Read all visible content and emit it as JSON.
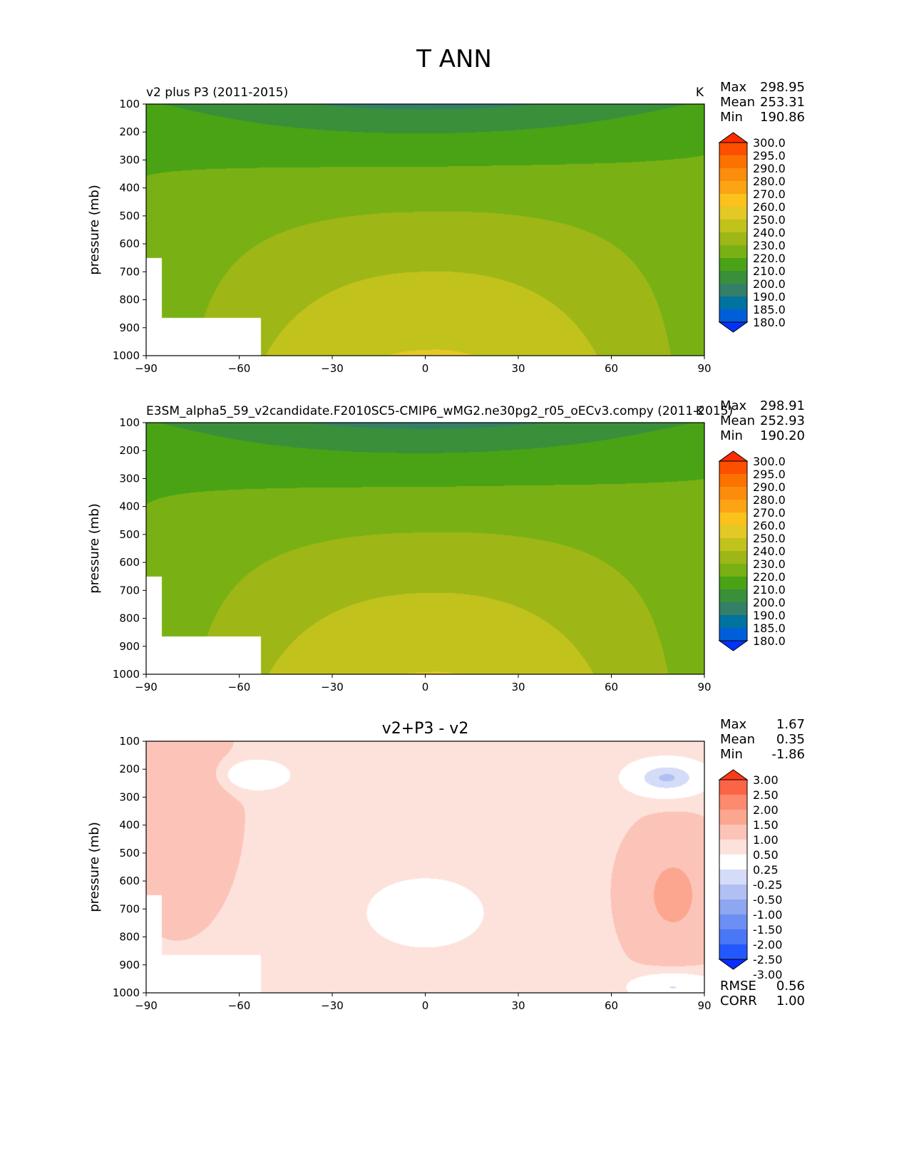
{
  "figure_title": "T ANN",
  "colors": {
    "test_levels": [
      "#0033ff",
      "#005ed9",
      "#00739e",
      "#347f68",
      "#3a8f3a",
      "#4aa314",
      "#79b114",
      "#9eb716",
      "#c2c21c",
      "#e3c826",
      "#fbc11c",
      "#fca414",
      "#fc8c0c",
      "#fc7200",
      "#fc5000",
      "#fc2d00"
    ],
    "diff_levels": [
      "#0a2cff",
      "#2458ff",
      "#4a77f5",
      "#6b8ff2",
      "#8fa6f0",
      "#b1bff2",
      "#d5dcf8",
      "#ffffff",
      "#fde2dc",
      "#fcc4b8",
      "#fca690",
      "#fc8a6e",
      "#fb6446",
      "#fc3a18"
    ]
  },
  "legend_labels": {
    "temperature": [
      "300.0",
      "295.0",
      "290.0",
      "280.0",
      "270.0",
      "260.0",
      "250.0",
      "240.0",
      "230.0",
      "220.0",
      "210.0",
      "200.0",
      "190.0",
      "185.0",
      "180.0"
    ],
    "difference": [
      "3.00",
      "2.50",
      "2.00",
      "1.50",
      "1.00",
      "0.50",
      "0.25",
      "-0.25",
      "-0.50",
      "-1.00",
      "-1.50",
      "-2.00",
      "-2.50",
      "-3.00"
    ]
  },
  "chart_data": [
    {
      "type": "heatmap",
      "left_title": "v2 plus P3 (2011-2015)",
      "units": "K",
      "stats": [
        {
          "label": "Max",
          "value": "298.95"
        },
        {
          "label": "Mean",
          "value": "253.31"
        },
        {
          "label": "Min",
          "value": "190.86"
        }
      ],
      "ylabel": "pressure (mb)",
      "x_ticks": [
        "−90",
        "−60",
        "−30",
        "0",
        "30",
        "60",
        "90"
      ],
      "y_ticks": [
        "100",
        "200",
        "300",
        "400",
        "500",
        "600",
        "700",
        "800",
        "900",
        "1000"
      ],
      "xlim": [
        -90,
        90
      ],
      "ylim": [
        1000,
        100
      ],
      "contour_levels": [
        180,
        185,
        190,
        200,
        210,
        220,
        230,
        240,
        250,
        260,
        270,
        280,
        290,
        295,
        300
      ],
      "variable_range": {
        "min": 190.86,
        "max": 298.95,
        "mean": 253.31
      }
    },
    {
      "type": "heatmap",
      "left_title": "E3SM_alpha5_59_v2candidate.F2010SC5-CMIP6_wMG2.ne30pg2_r05_oECv3.compy (2011-2015)",
      "units": "K",
      "stats": [
        {
          "label": "Max",
          "value": "298.91"
        },
        {
          "label": "Mean",
          "value": "252.93"
        },
        {
          "label": "Min",
          "value": "190.20"
        }
      ],
      "ylabel": "pressure (mb)",
      "x_ticks": [
        "−90",
        "−60",
        "−30",
        "0",
        "30",
        "60",
        "90"
      ],
      "y_ticks": [
        "100",
        "200",
        "300",
        "400",
        "500",
        "600",
        "700",
        "800",
        "900",
        "1000"
      ],
      "xlim": [
        -90,
        90
      ],
      "ylim": [
        1000,
        100
      ],
      "contour_levels": [
        180,
        185,
        190,
        200,
        210,
        220,
        230,
        240,
        250,
        260,
        270,
        280,
        290,
        295,
        300
      ],
      "variable_range": {
        "min": 190.2,
        "max": 298.91,
        "mean": 252.93
      }
    },
    {
      "type": "heatmap",
      "center_title": "v2+P3 - v2",
      "stats": [
        {
          "label": "Max",
          "value": "1.67"
        },
        {
          "label": "Mean",
          "value": "0.35"
        },
        {
          "label": "Min",
          "value": "-1.86"
        }
      ],
      "extra_stats": [
        {
          "label": "RMSE",
          "value": "0.56"
        },
        {
          "label": "CORR",
          "value": "1.00"
        }
      ],
      "ylabel": "pressure (mb)",
      "x_ticks": [
        "−90",
        "−60",
        "−30",
        "0",
        "30",
        "60",
        "90"
      ],
      "y_ticks": [
        "100",
        "200",
        "300",
        "400",
        "500",
        "600",
        "700",
        "800",
        "900",
        "1000"
      ],
      "xlim": [
        -90,
        90
      ],
      "ylim": [
        1000,
        100
      ],
      "contour_levels": [
        -3.0,
        -2.5,
        -2.0,
        -1.5,
        -1.0,
        -0.5,
        -0.25,
        0.25,
        0.5,
        1.0,
        1.5,
        2.0,
        2.5,
        3.0
      ],
      "variable_range": {
        "min": -1.86,
        "max": 1.67,
        "mean": 0.35
      }
    }
  ]
}
